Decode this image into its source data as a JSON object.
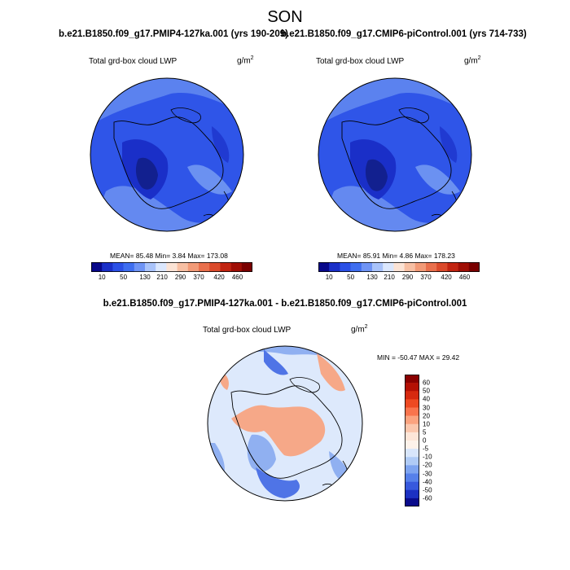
{
  "main_title": "SON",
  "panel1": {
    "title": "b.e21.B1850.f09_g17.PMIP4-127ka.001 (yrs 190-209)",
    "variable": "Total grd-box cloud LWP",
    "units_base": "g/m",
    "units_exp": "2",
    "stats_text": "MEAN=  85.48  Min=   3.84  Max= 173.08"
  },
  "panel2": {
    "title": "b.e21.B1850.f09_g17.CMIP6-piControl.001 (yrs 714-733)",
    "variable": "Total grd-box cloud LWP",
    "units_base": "g/m",
    "units_exp": "2",
    "stats_text": "MEAN=  85.91  Min=   4.86  Max= 178.23"
  },
  "diff_panel": {
    "title": "b.e21.B1850.f09_g17.PMIP4-127ka.001 - b.e21.B1850.f09_g17.CMIP6-piControl.001",
    "variable": "Total grd-box cloud LWP",
    "units_base": "g/m",
    "units_exp": "2",
    "minmax_text": "MIN = -50.47 MAX =  29.42"
  },
  "abs_colorbar": {
    "labels": [
      "10",
      "50",
      "130",
      "210",
      "290",
      "370",
      "420",
      "460"
    ],
    "colors": [
      "#08088a",
      "#1a2fc8",
      "#2b50e6",
      "#3f6ef0",
      "#6f94f5",
      "#a9c3fa",
      "#dbe7fd",
      "#fbe3d5",
      "#f7bfa3",
      "#f29a77",
      "#e9704d",
      "#db4a2b",
      "#c22411",
      "#a00e05",
      "#7a0000"
    ]
  },
  "diff_colorbar": {
    "labels": [
      "60",
      "50",
      "40",
      "30",
      "20",
      "10",
      "5",
      "0",
      "-5",
      "-10",
      "-20",
      "-30",
      "-40",
      "-50",
      "-60"
    ],
    "colors": [
      "#8a0000",
      "#b41004",
      "#d6290f",
      "#ee4a22",
      "#f9744d",
      "#fba37f",
      "#fbc7ad",
      "#fde6d8",
      "#fdf2ea",
      "#d8e6fb",
      "#b0cbf6",
      "#7ea4f0",
      "#5680ea",
      "#3759dd",
      "#1c31c2",
      "#0a0c8c"
    ]
  },
  "map_colors": {
    "abs_background": "#2f55e8",
    "abs_light": "#7aa0f3",
    "abs_dark": "#1a2fc8",
    "abs_darkest": "#12208f",
    "diff_background": "#dde9fc",
    "diff_warm": "#f6a888",
    "diff_cool": "#90b0f1",
    "diff_deep_cool": "#4f74e6"
  }
}
